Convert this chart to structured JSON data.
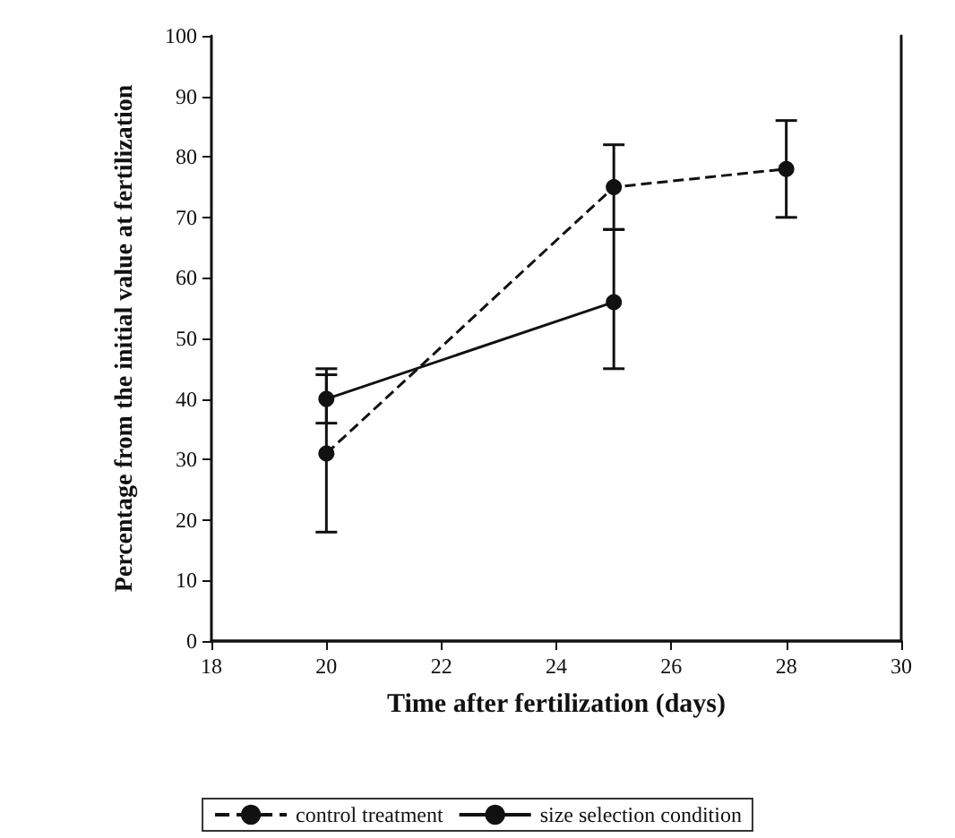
{
  "chart_data": {
    "type": "line",
    "xlabel": "Time after fertilization (days)",
    "ylabel": "Percentage from the initial value at fertilization",
    "xlim": [
      18,
      30
    ],
    "xticks": [
      18,
      20,
      22,
      24,
      26,
      28,
      30
    ],
    "ylim": [
      0,
      100
    ],
    "yticks": [
      0,
      10,
      20,
      30,
      40,
      50,
      60,
      70,
      80,
      90,
      100
    ],
    "series": [
      {
        "name": "control treatment",
        "color": "#111111",
        "line_style": "dashed",
        "x": [
          20,
          25,
          28
        ],
        "values": [
          31,
          75,
          78
        ],
        "errors": [
          [
            18,
            44
          ],
          [
            68,
            82
          ],
          [
            70,
            86
          ]
        ]
      },
      {
        "name": "size selection condition",
        "color": "#111111",
        "line_style": "solid",
        "x": [
          20,
          25
        ],
        "values": [
          40,
          56
        ],
        "errors": [
          [
            36,
            45
          ],
          [
            45,
            68
          ]
        ]
      }
    ],
    "marker": "circle",
    "grid": false,
    "legend": "bottom"
  }
}
